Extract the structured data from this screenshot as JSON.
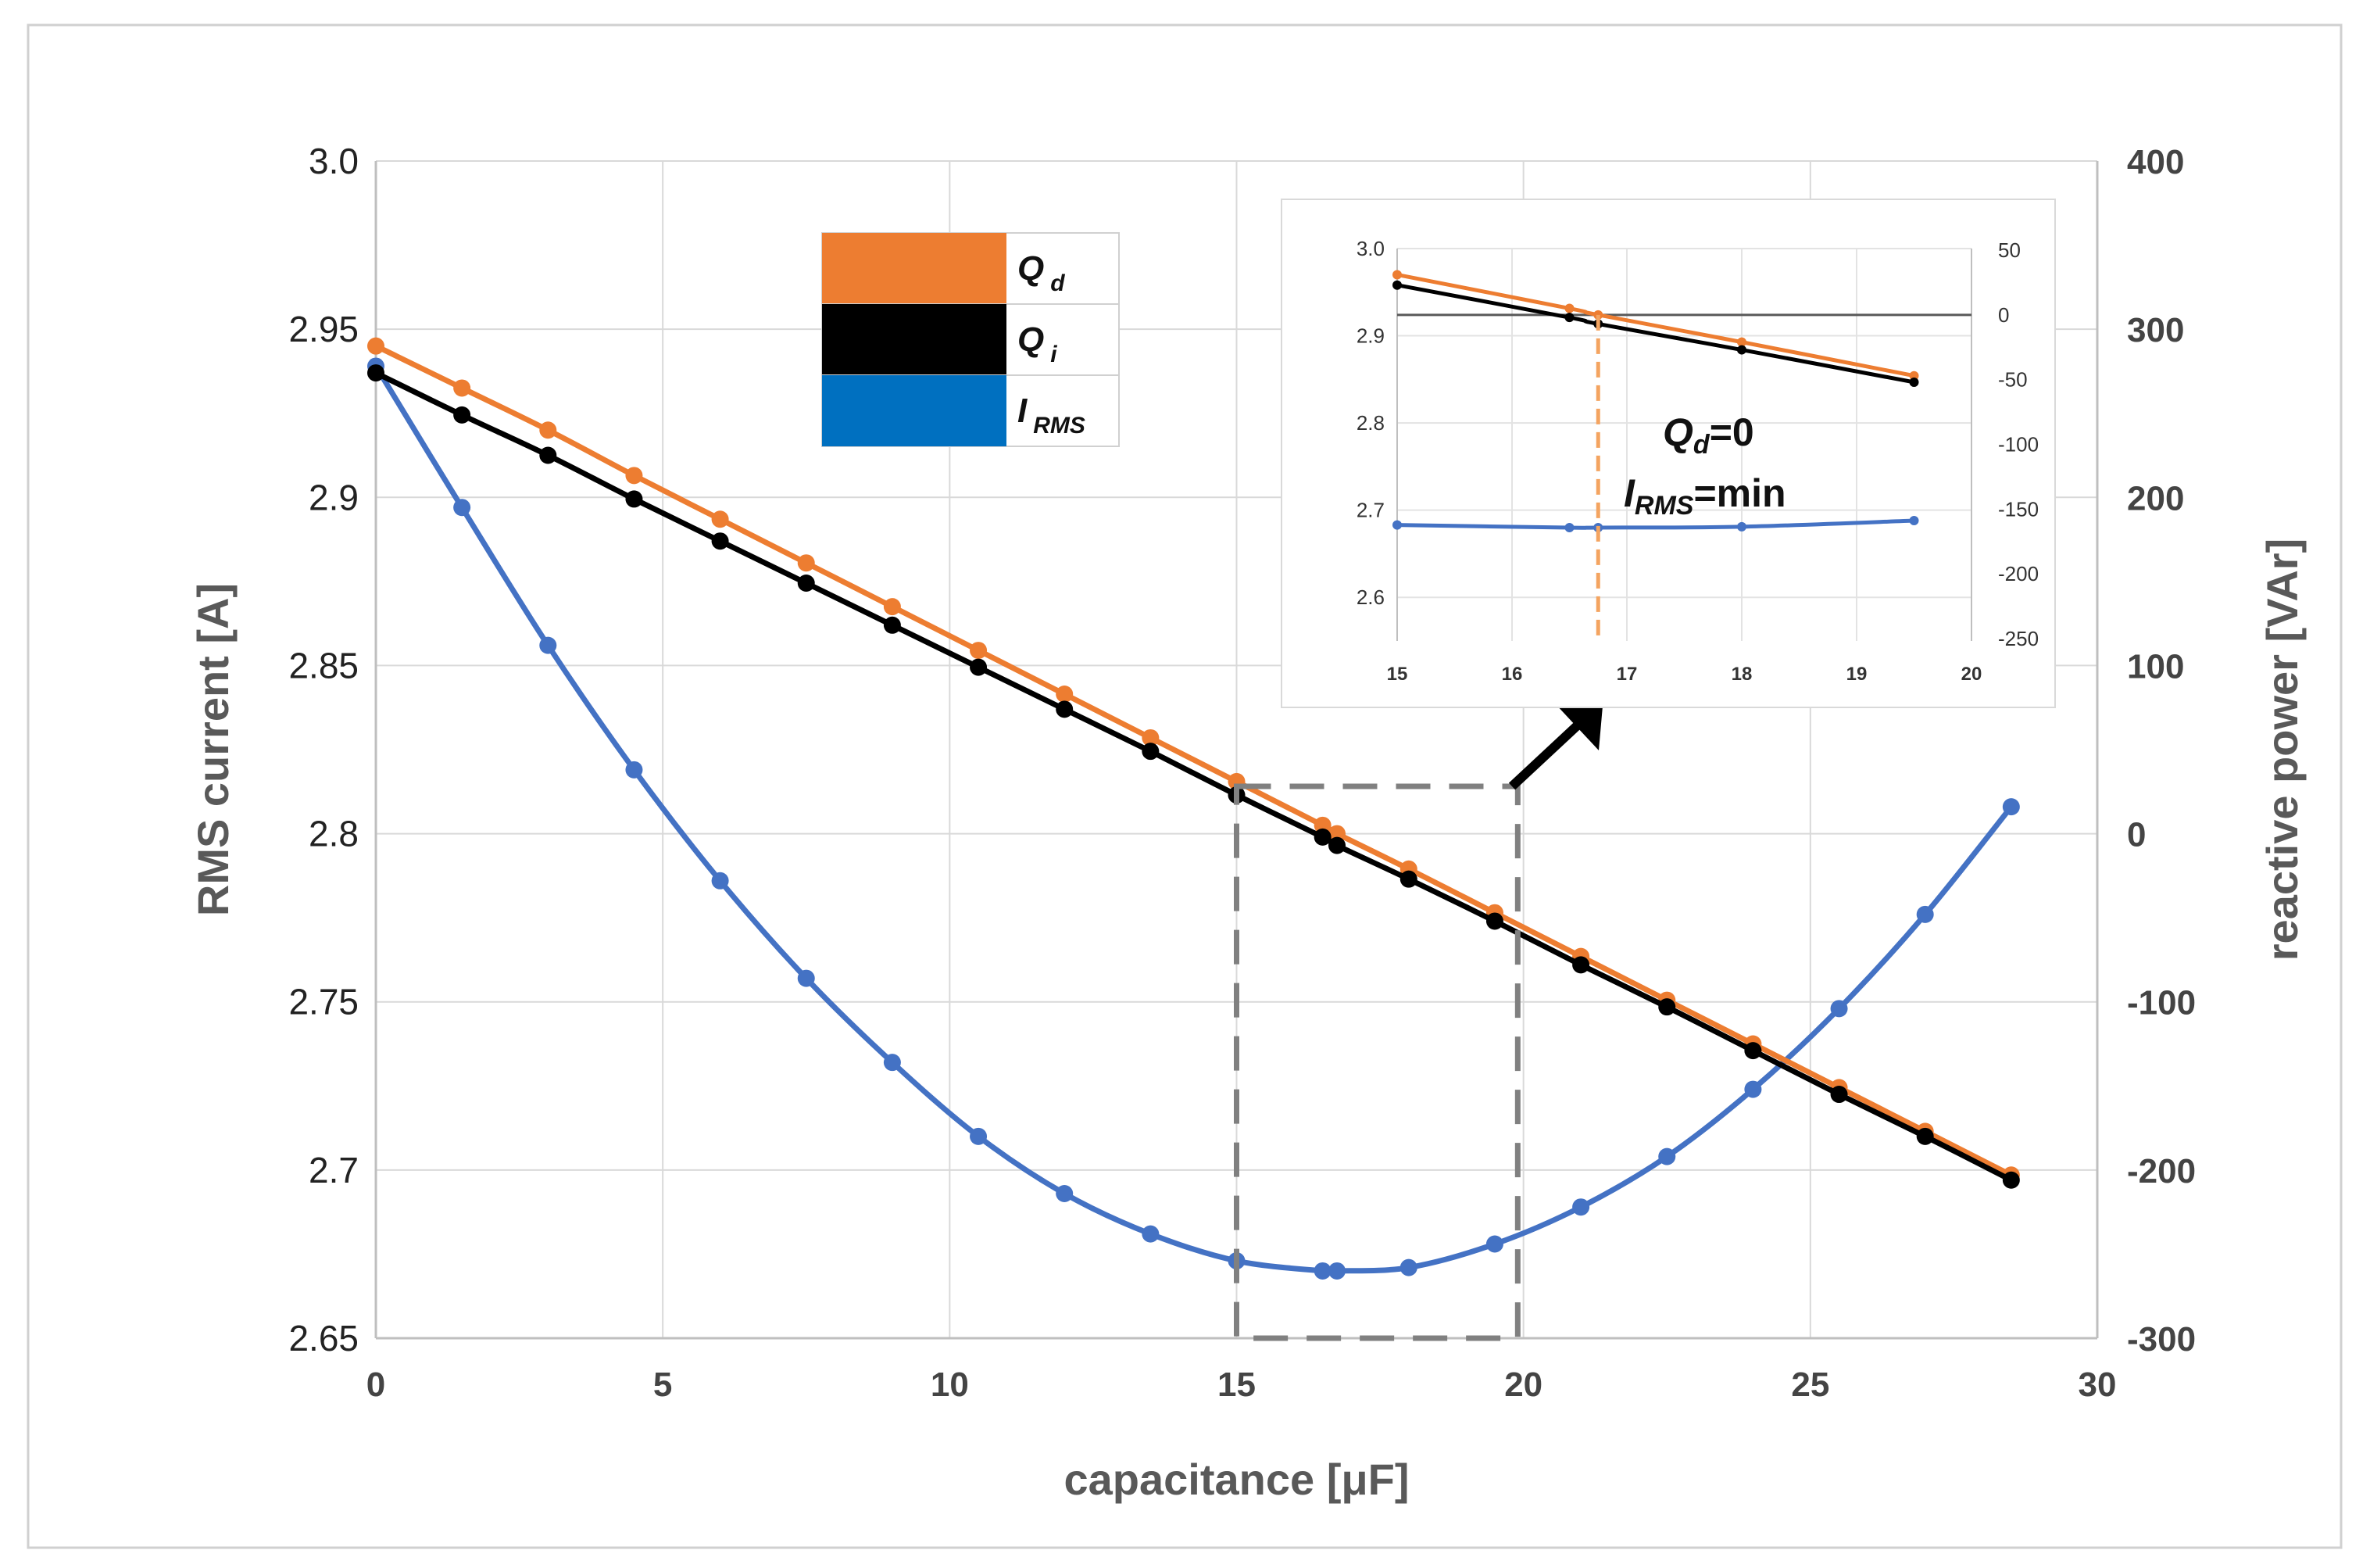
{
  "chart_data": {
    "type": "line",
    "xlabel": "capacitance [μF]",
    "ylabel": "RMS current [A]",
    "y2label": "reactive power  [VAr]",
    "xlim": [
      0,
      30
    ],
    "ylim": [
      2.65,
      3.0
    ],
    "y2lim": [
      -300,
      400
    ],
    "xticks": [
      "0",
      "5",
      "10",
      "15",
      "20",
      "25",
      "30"
    ],
    "yticks": [
      "2.65",
      "2.7",
      "2.75",
      "2.8",
      "2.85",
      "2.9",
      "2.95",
      "3.0"
    ],
    "y2ticks": [
      "-300",
      "-200",
      "-100",
      "0",
      "100",
      "200",
      "300",
      "400"
    ],
    "legend": {
      "position": "top-center",
      "entries": [
        {
          "label": "Q",
          "sub": "d",
          "color": "#ED7D31"
        },
        {
          "label": "Q",
          "sub": "i",
          "color": "#000000"
        },
        {
          "label": "I",
          "sub": "RMS",
          "color": "#0070C0"
        }
      ]
    },
    "series": [
      {
        "name": "I_RMS",
        "axis": "left",
        "color": "#4472C4",
        "x": [
          0,
          1.5,
          3,
          4.5,
          6,
          7.5,
          9,
          10.5,
          12,
          13.5,
          15,
          16.5,
          16.75,
          18,
          19.5,
          21,
          22.5,
          24,
          25.5,
          27,
          28.5
        ],
        "y": [
          2.939,
          2.897,
          2.856,
          2.819,
          2.786,
          2.757,
          2.732,
          2.71,
          2.693,
          2.681,
          2.673,
          2.67,
          2.67,
          2.671,
          2.678,
          2.689,
          2.704,
          2.724,
          2.748,
          2.776,
          2.808
        ]
      },
      {
        "name": "Q_d",
        "axis": "right",
        "color": "#ED7D31",
        "x": [
          0,
          1.5,
          3,
          4.5,
          6,
          7.5,
          9,
          10.5,
          12,
          13.5,
          15,
          16.5,
          16.75,
          18,
          19.5,
          21,
          22.5,
          24,
          25.5,
          27,
          28.5
        ],
        "y": [
          290,
          265,
          240,
          213,
          187,
          161,
          135,
          109,
          83,
          57,
          31,
          5,
          0,
          -21,
          -47,
          -73,
          -99,
          -125,
          -151,
          -177,
          -203
        ]
      },
      {
        "name": "Q_i",
        "axis": "right",
        "color": "#000000",
        "x": [
          0,
          1.5,
          3,
          4.5,
          6,
          7.5,
          9,
          10.5,
          12,
          13.5,
          15,
          16.5,
          16.75,
          18,
          19.5,
          21,
          22.5,
          24,
          25.5,
          27,
          28.5
        ],
        "y": [
          274,
          249,
          225,
          199,
          174,
          149,
          124,
          99,
          74,
          49,
          23,
          -2,
          -7,
          -27,
          -52,
          -78,
          -103,
          -129,
          -155,
          -180,
          -206
        ]
      }
    ],
    "inset": {
      "xlim": [
        15,
        20
      ],
      "xticks": [
        "15",
        "16",
        "17",
        "18",
        "19",
        "20"
      ],
      "yticks": [
        "2.6",
        "2.7",
        "2.8",
        "2.9",
        "3.0"
      ],
      "y2ticks": [
        "-250",
        "-200",
        "-150",
        "-100",
        "-50",
        "0",
        "50"
      ],
      "annotation_qd": "=0",
      "annotation_qd_label": "Q",
      "annotation_qd_sub": "d",
      "annotation_irms": "=min",
      "annotation_irms_label": "I",
      "annotation_irms_sub": "RMS"
    }
  }
}
